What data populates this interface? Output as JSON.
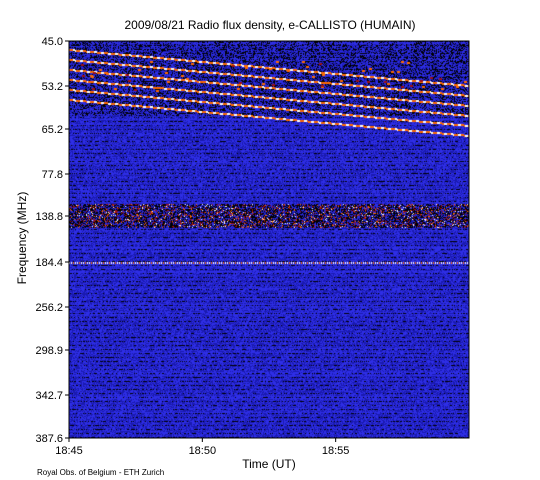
{
  "chart_data": {
    "type": "heatmap",
    "title": "2009/08/21  Radio flux density, e-CALLISTO (HUMAIN)",
    "xlabel": "Time (UT)",
    "ylabel": "Frequency (MHz)",
    "x_range": [
      "18:45",
      "19:00"
    ],
    "x_ticks": [
      "18:45",
      "18:50",
      "18:55"
    ],
    "y_ticks": [
      "45.0",
      "53.2",
      "65.2",
      "77.8",
      "138.8",
      "184.4",
      "256.2",
      "298.9",
      "342.7",
      "387.6"
    ],
    "y_direction": "top-to-bottom increasing",
    "colormap": [
      "#000000",
      "#1a1ab0",
      "#2e2ee6",
      "#a01010",
      "#ff6a00",
      "#ffffff"
    ],
    "features": [
      {
        "type": "drifting-lines",
        "freq_range_mhz": [
          45.0,
          65.2
        ],
        "time_range": [
          "18:45",
          "19:00"
        ]
      },
      {
        "type": "interference-band",
        "freq_range_mhz": [
          120.0,
          150.0
        ],
        "time_range": [
          "18:45",
          "19:00"
        ]
      },
      {
        "type": "constant-line",
        "freq_mhz": 184.4,
        "time_range": [
          "18:45",
          "19:00"
        ]
      }
    ],
    "grid": false,
    "legend": false
  },
  "footer": "Royal Obs. of Belgium - ETH Zurich"
}
